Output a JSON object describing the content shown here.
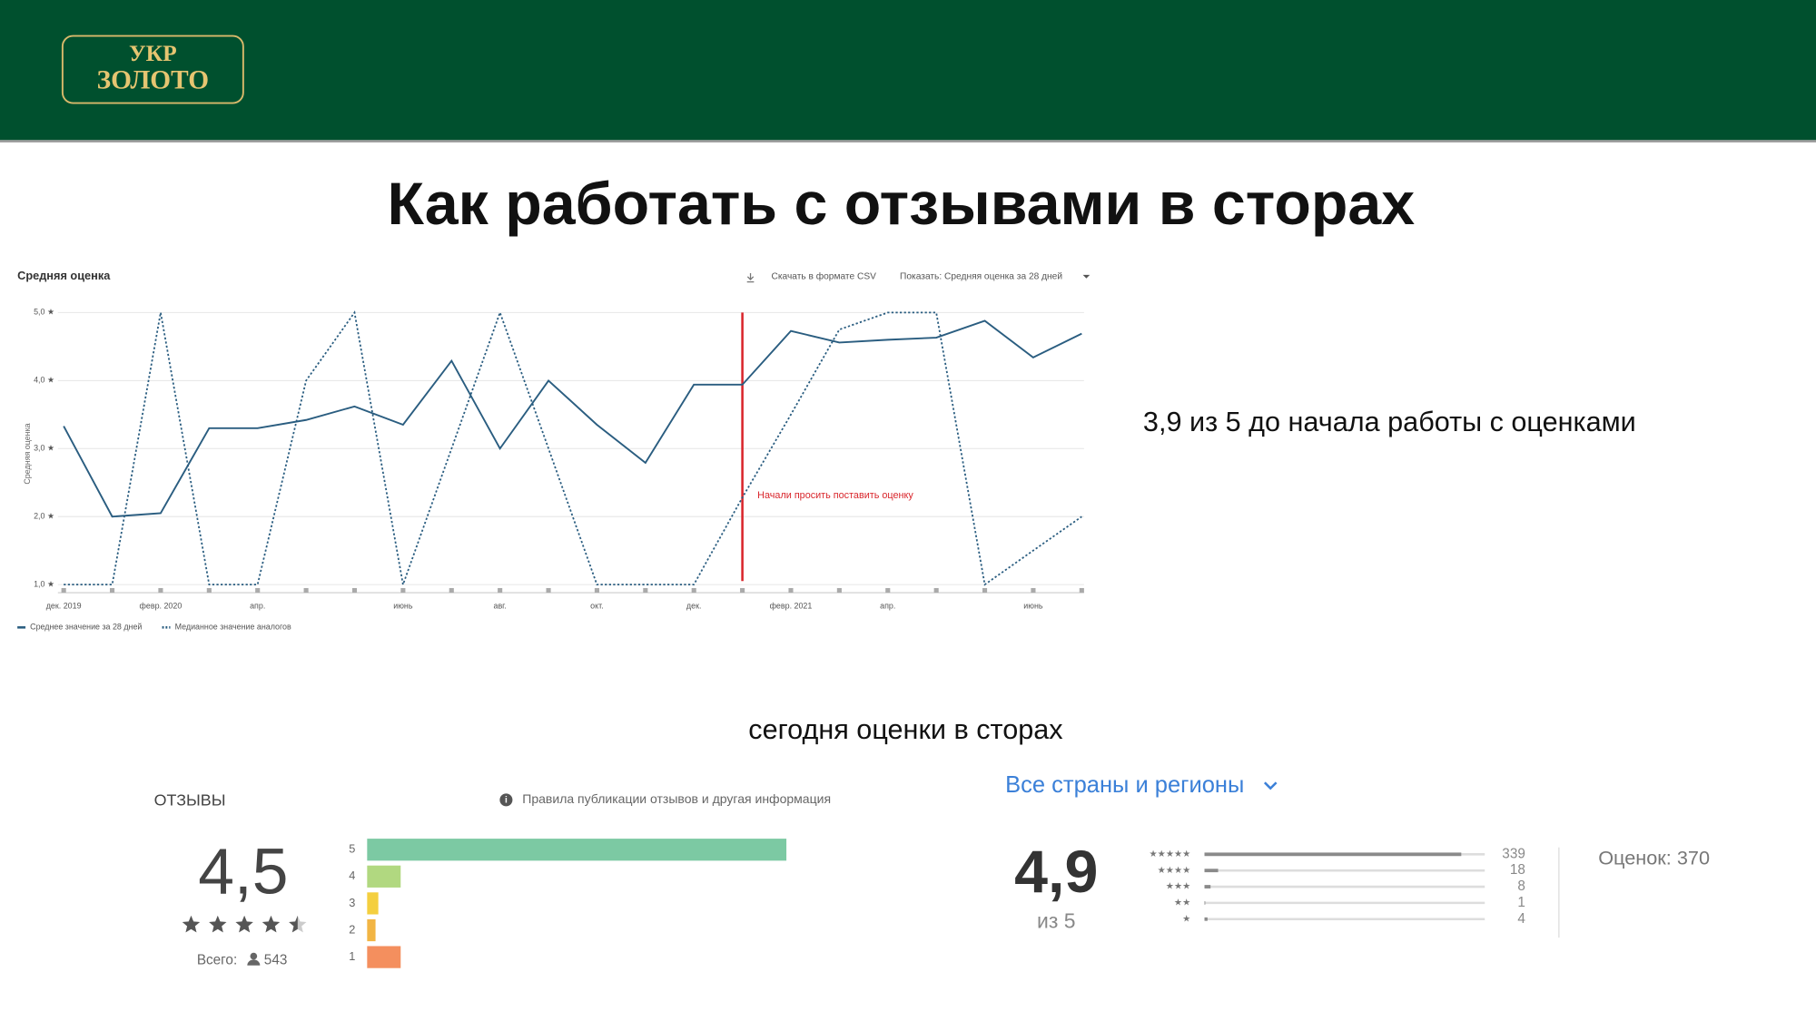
{
  "header": {
    "logo_line1": "УКР",
    "logo_line2": "ЗОЛОТО"
  },
  "title": "Как работать с отзывами в сторах",
  "note": "3,9 из 5 до начала работы с оценками",
  "subtitle": "сегодня оценки в сторах",
  "chart_data": [
    {
      "type": "line",
      "title": "Средняя оценка",
      "toolbar": [
        "Скачать в формате CSV",
        "Показать: Средняя оценка за 28 дней"
      ],
      "ylabel": "Средняя оценка",
      "ylim": [
        1,
        5
      ],
      "yticks": [
        {
          "value": 1,
          "label": "1,0 ★"
        },
        {
          "value": 2,
          "label": "2,0 ★"
        },
        {
          "value": 3,
          "label": "3,0 ★"
        },
        {
          "value": 4,
          "label": "4,0 ★"
        },
        {
          "value": 5,
          "label": "5,0 ★"
        }
      ],
      "grid": true,
      "categories": [
        "дек. 2019",
        null,
        "февр. 2020",
        null,
        "апр.",
        null,
        null,
        "июнь",
        null,
        "авг.",
        null,
        "окт.",
        null,
        "дек.",
        null,
        "февр. 2021",
        null,
        "апр.",
        null,
        null,
        "июнь",
        null
      ],
      "series": [
        {
          "name": "Среднее значение за 28 дней",
          "color": "#2a5d80",
          "dashed": false,
          "values": [
            3.33,
            2.0,
            2.05,
            3.3,
            3.3,
            3.42,
            3.62,
            3.35,
            4.29,
            3.0,
            4.0,
            3.35,
            2.79,
            3.94,
            3.94,
            4.73,
            4.56,
            4.6,
            4.63,
            4.88,
            4.34,
            4.69
          ]
        },
        {
          "name": "Медианное значение аналогов",
          "color": "#2a5d80",
          "dashed": true,
          "values": [
            1.0,
            1.0,
            5.0,
            1.0,
            1.0,
            4.0,
            5.0,
            1.0,
            3.0,
            5.0,
            3.0,
            1.0,
            1.0,
            1.0,
            2.28,
            3.5,
            4.75,
            5.0,
            5.0,
            1.0,
            1.5,
            2.0
          ]
        }
      ],
      "annotation": {
        "text": "Начали просить поставить оценку",
        "category_index": 14,
        "color": "#d9262c"
      }
    },
    {
      "type": "bar",
      "title": "ОТЗЫВЫ",
      "info": "Правила публикации отзывов и другая информация",
      "average": {
        "value": 4.5,
        "label": "4,5"
      },
      "total_label": "Всего:",
      "total": 543,
      "categories": [
        "5",
        "4",
        "3",
        "2",
        "1"
      ],
      "values": [
        450,
        36,
        12,
        9,
        36
      ],
      "colors": [
        "#7cc9a3",
        "#b1d880",
        "#f4cf3f",
        "#f2b544",
        "#f48f5e"
      ]
    },
    {
      "type": "bar",
      "filter": "Все страны и регионы",
      "average": {
        "value": 4.9,
        "label": "4,9"
      },
      "out_of": "из 5",
      "categories": [
        "★★★★★",
        "★★★★",
        "★★★",
        "★★",
        "★"
      ],
      "values": [
        339,
        18,
        8,
        1,
        4
      ],
      "value_labels": [
        "339",
        "18",
        "8",
        "1",
        "4"
      ],
      "total_label": "Оценок:",
      "total": 370,
      "color": "#8a8a8a"
    }
  ]
}
